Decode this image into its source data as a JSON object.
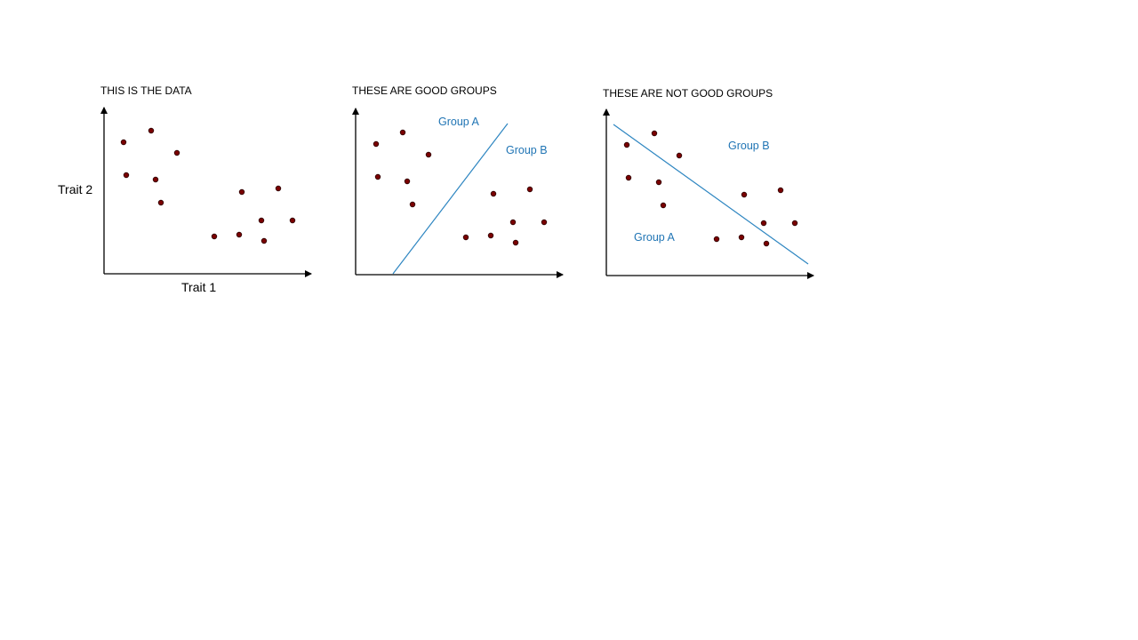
{
  "colors": {
    "background": "#ffffff",
    "axis": "#000000",
    "point": "#7a0000",
    "point_outline": "#2a0000",
    "divider": "#2e86c1",
    "group_label": "#1f74b4"
  },
  "axis_labels": {
    "x": "Trait 1",
    "y": "Trait 2"
  },
  "panels": [
    {
      "title": "THIS IS THE DATA",
      "points": [
        [
          22,
          148
        ],
        [
          25,
          111
        ],
        [
          53,
          161
        ],
        [
          58,
          106
        ],
        [
          64,
          80
        ],
        [
          82,
          136
        ],
        [
          124,
          42
        ],
        [
          152,
          44
        ],
        [
          155,
          92
        ],
        [
          177,
          60
        ],
        [
          180,
          37
        ],
        [
          196,
          96
        ],
        [
          212,
          60
        ]
      ]
    },
    {
      "title": "THESE ARE GOOD GROUPS",
      "group_a": "Group A",
      "group_b": "Group B",
      "points": [
        [
          23,
          147
        ],
        [
          25,
          110
        ],
        [
          53,
          160
        ],
        [
          58,
          105
        ],
        [
          64,
          79
        ],
        [
          82,
          135
        ],
        [
          124,
          42
        ],
        [
          152,
          44
        ],
        [
          155,
          91
        ],
        [
          177,
          59
        ],
        [
          180,
          36
        ],
        [
          196,
          96
        ],
        [
          212,
          59
        ]
      ]
    },
    {
      "title": "THESE ARE NOT GOOD GROUPS",
      "group_a": "Group A",
      "group_b": "Group B",
      "points": [
        [
          23,
          147
        ],
        [
          25,
          110
        ],
        [
          54,
          160
        ],
        [
          59,
          105
        ],
        [
          64,
          79
        ],
        [
          82,
          135
        ],
        [
          124,
          41
        ],
        [
          152,
          43
        ],
        [
          155,
          91
        ],
        [
          177,
          59
        ],
        [
          180,
          36
        ],
        [
          196,
          96
        ],
        [
          212,
          59
        ]
      ]
    }
  ]
}
